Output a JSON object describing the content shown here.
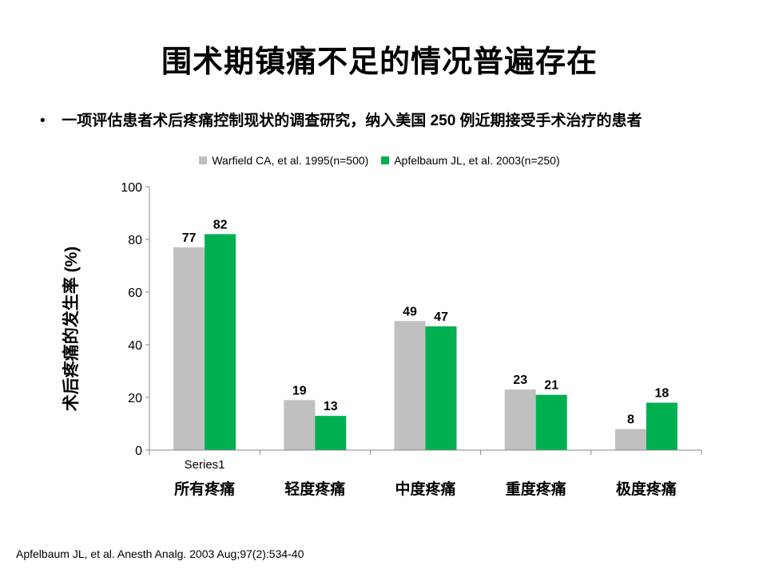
{
  "title": "围术期镇痛不足的情况普遍存在",
  "bullet": {
    "marker": "•",
    "text": "一项评估患者术后疼痛控制现状的调查研究，纳入美国 250 例近期接受手术治疗的患者"
  },
  "citation": "Apfelbaum JL, et al. Anesth Analg. 2003 Aug;97(2):534-40",
  "colors": {
    "series1": "#C0C0C0",
    "series2": "#00B050",
    "axis": "#888888"
  },
  "chart_data": {
    "type": "bar",
    "title": "",
    "xlabel": "",
    "ylabel": "术后疼痛的发生率 (%)",
    "ylim": [
      0,
      100
    ],
    "yticks": [
      0,
      20,
      40,
      60,
      80,
      100
    ],
    "axis_note": "Series1",
    "categories": [
      "所有疼痛",
      "轻度疼痛",
      "中度疼痛",
      "重度疼痛",
      "极度疼痛"
    ],
    "series": [
      {
        "name": "Warfield CA, et al. 1995(n=500)",
        "values": [
          77,
          19,
          49,
          23,
          8
        ]
      },
      {
        "name": "Apfelbaum JL, et al. 2003(n=250)",
        "values": [
          82,
          13,
          47,
          21,
          18
        ]
      }
    ],
    "legend": "top",
    "grid": false,
    "data_labels": true
  }
}
